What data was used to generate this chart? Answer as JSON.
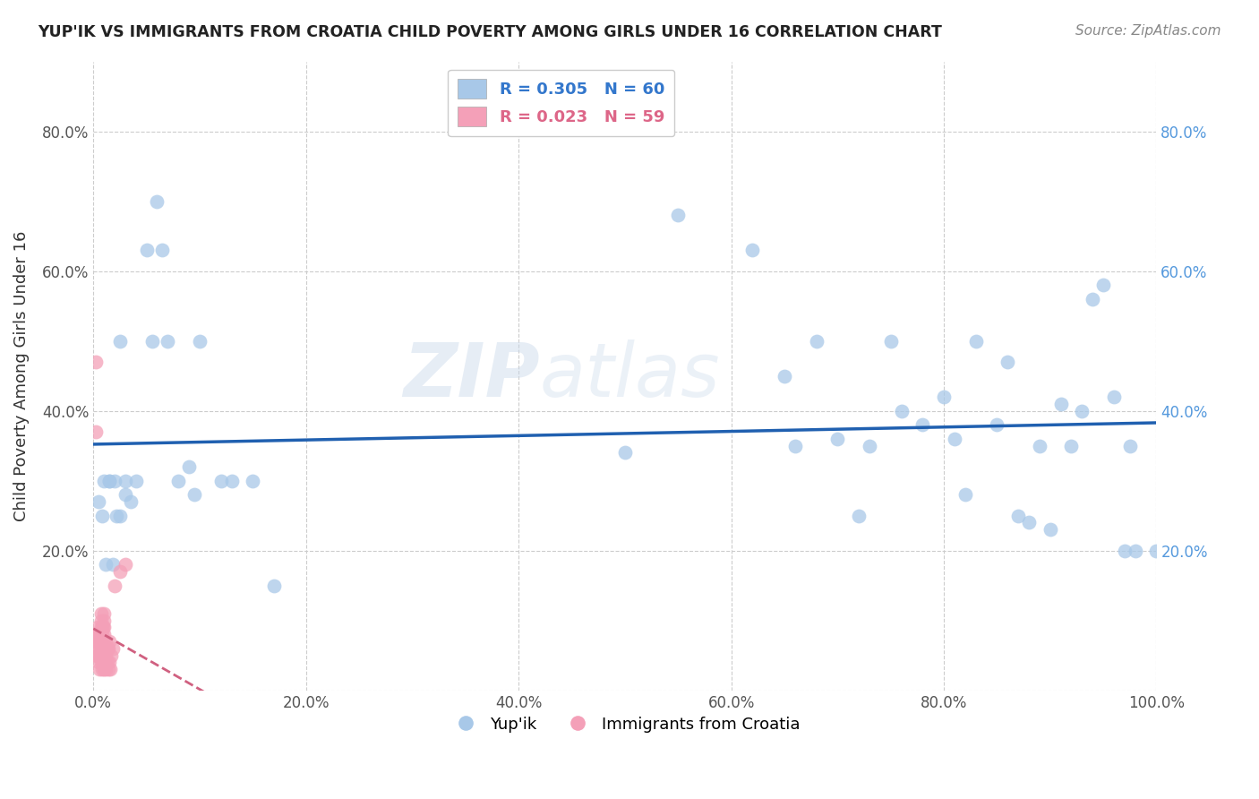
{
  "title": "YUP'IK VS IMMIGRANTS FROM CROATIA CHILD POVERTY AMONG GIRLS UNDER 16 CORRELATION CHART",
  "source": "Source: ZipAtlas.com",
  "ylabel": "Child Poverty Among Girls Under 16",
  "watermark": "ZIPatlas",
  "color_blue": "#a8c8e8",
  "color_pink": "#f4a0b8",
  "trendline_blue": "#2060b0",
  "trendline_pink": "#d06080",
  "background": "#ffffff",
  "yupik_x": [
    0.005,
    0.008,
    0.01,
    0.012,
    0.015,
    0.015,
    0.018,
    0.02,
    0.022,
    0.025,
    0.025,
    0.03,
    0.03,
    0.035,
    0.04,
    0.05,
    0.055,
    0.06,
    0.065,
    0.07,
    0.08,
    0.09,
    0.095,
    0.1,
    0.12,
    0.13,
    0.15,
    0.17,
    0.5,
    0.55,
    0.62,
    0.65,
    0.66,
    0.68,
    0.7,
    0.72,
    0.73,
    0.75,
    0.76,
    0.78,
    0.8,
    0.81,
    0.82,
    0.83,
    0.85,
    0.86,
    0.87,
    0.88,
    0.89,
    0.9,
    0.91,
    0.92,
    0.93,
    0.94,
    0.95,
    0.96,
    0.97,
    0.975,
    0.98,
    1.0
  ],
  "yupik_y": [
    0.27,
    0.25,
    0.3,
    0.18,
    0.3,
    0.3,
    0.18,
    0.3,
    0.25,
    0.5,
    0.25,
    0.28,
    0.3,
    0.27,
    0.3,
    0.63,
    0.5,
    0.7,
    0.63,
    0.5,
    0.3,
    0.32,
    0.28,
    0.5,
    0.3,
    0.3,
    0.3,
    0.15,
    0.34,
    0.68,
    0.63,
    0.45,
    0.35,
    0.5,
    0.36,
    0.25,
    0.35,
    0.5,
    0.4,
    0.38,
    0.42,
    0.36,
    0.28,
    0.5,
    0.38,
    0.47,
    0.25,
    0.24,
    0.35,
    0.23,
    0.41,
    0.35,
    0.4,
    0.56,
    0.58,
    0.42,
    0.2,
    0.35,
    0.2,
    0.2
  ],
  "croatia_x": [
    0.002,
    0.002,
    0.003,
    0.003,
    0.003,
    0.004,
    0.004,
    0.004,
    0.005,
    0.005,
    0.005,
    0.005,
    0.006,
    0.006,
    0.006,
    0.006,
    0.007,
    0.007,
    0.007,
    0.007,
    0.007,
    0.007,
    0.007,
    0.007,
    0.008,
    0.008,
    0.008,
    0.008,
    0.008,
    0.008,
    0.009,
    0.009,
    0.009,
    0.009,
    0.01,
    0.01,
    0.01,
    0.01,
    0.01,
    0.01,
    0.01,
    0.01,
    0.011,
    0.011,
    0.012,
    0.012,
    0.012,
    0.013,
    0.013,
    0.014,
    0.014,
    0.015,
    0.015,
    0.016,
    0.017,
    0.018,
    0.02,
    0.025,
    0.03
  ],
  "croatia_y": [
    0.47,
    0.37,
    0.05,
    0.07,
    0.08,
    0.05,
    0.07,
    0.09,
    0.04,
    0.06,
    0.07,
    0.08,
    0.03,
    0.05,
    0.06,
    0.08,
    0.04,
    0.05,
    0.06,
    0.07,
    0.08,
    0.09,
    0.1,
    0.11,
    0.03,
    0.05,
    0.06,
    0.07,
    0.08,
    0.09,
    0.04,
    0.05,
    0.07,
    0.09,
    0.03,
    0.05,
    0.06,
    0.07,
    0.08,
    0.09,
    0.1,
    0.11,
    0.04,
    0.06,
    0.03,
    0.05,
    0.07,
    0.04,
    0.06,
    0.03,
    0.06,
    0.04,
    0.07,
    0.03,
    0.05,
    0.06,
    0.15,
    0.17,
    0.18
  ],
  "xlim": [
    0.0,
    1.0
  ],
  "ylim": [
    0.0,
    0.9
  ],
  "xticks": [
    0.0,
    0.2,
    0.4,
    0.6,
    0.8,
    1.0
  ],
  "yticks": [
    0.0,
    0.2,
    0.4,
    0.6,
    0.8
  ],
  "xticklabels": [
    "0.0%",
    "20.0%",
    "40.0%",
    "60.0%",
    "80.0%",
    "100.0%"
  ],
  "yticklabels": [
    "",
    "20.0%",
    "40.0%",
    "60.0%",
    "80.0%"
  ],
  "yright_ticks": [
    0.2,
    0.4,
    0.6,
    0.8
  ],
  "yright_labels": [
    "20.0%",
    "40.0%",
    "60.0%",
    "80.0%"
  ]
}
